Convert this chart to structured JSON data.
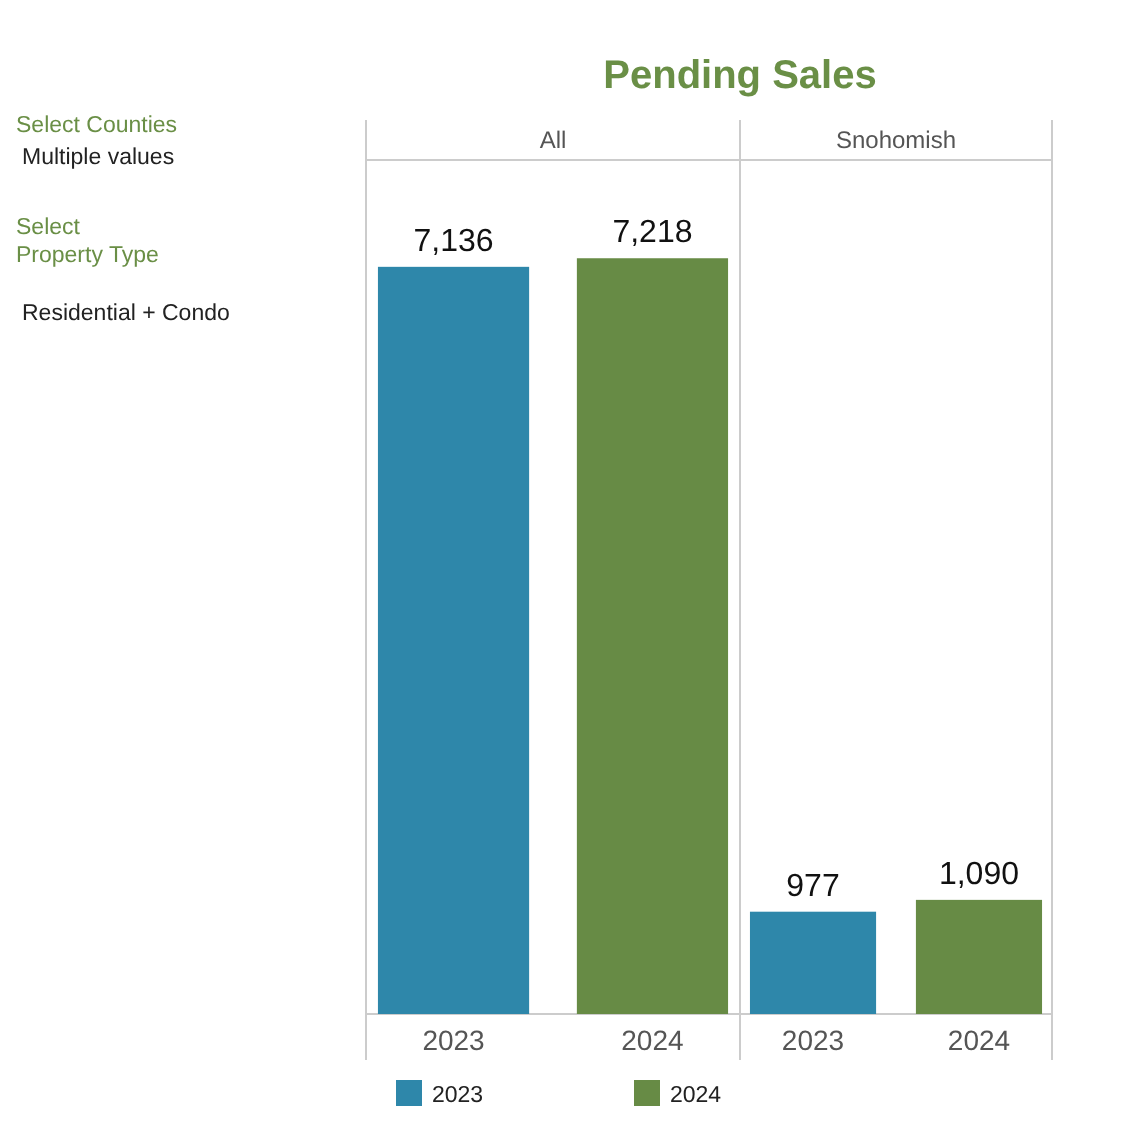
{
  "chart_data": [
    {
      "type": "bar",
      "title": "Pending Sales",
      "subtitle": "All",
      "categories": [
        "2023",
        "2024"
      ],
      "legend": "bottom",
      "series": [
        {
          "name": "2023",
          "color": "#2e87aa",
          "values": [
            7136,
            null
          ],
          "value_labels": [
            "7,136",
            null
          ]
        },
        {
          "name": "2024",
          "color": "#678b45",
          "values": [
            null,
            7218
          ],
          "value_labels": [
            null,
            "7,218"
          ]
        }
      ],
      "annotations": [
        "Select Counties",
        "Multiple values",
        "Select\nProperty Type",
        "Residential + Condo"
      ]
    },
    {
      "type": "bar",
      "subtitle": "Snohomish",
      "categories": [
        "2023",
        "2024"
      ],
      "series": [
        {
          "color": "#2e87aa",
          "values": [
            977,
            null
          ],
          "value_labels": [
            "977",
            null
          ]
        },
        {
          "color": "#678b45",
          "values": [
            null,
            1090
          ],
          "value_labels": [
            null,
            "1,090"
          ]
        }
      ]
    }
  ]
}
